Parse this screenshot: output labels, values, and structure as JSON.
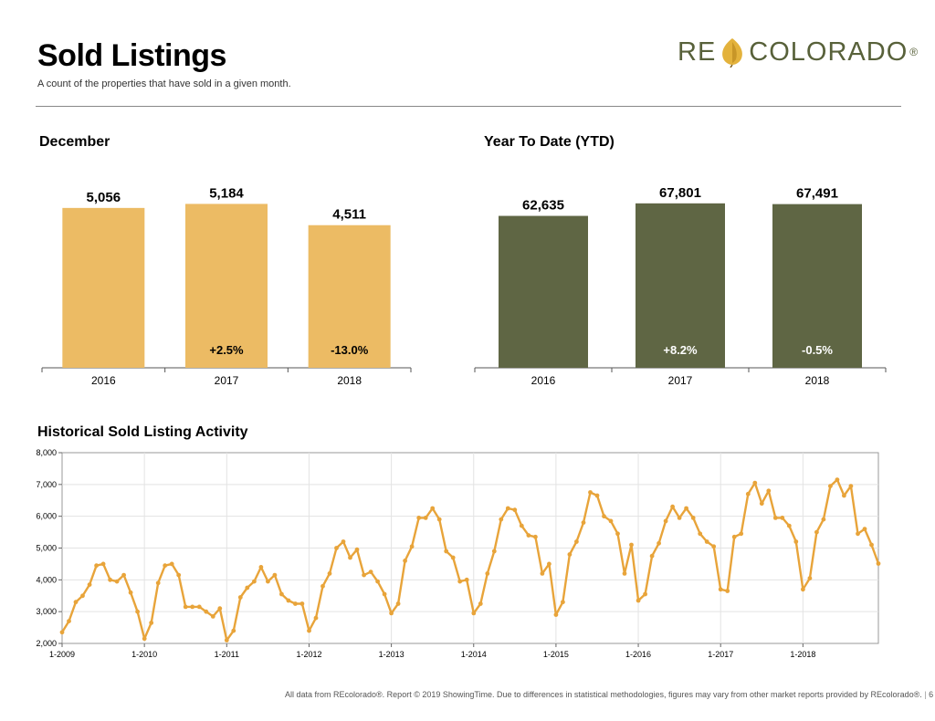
{
  "header": {
    "title": "Sold Listings",
    "subtitle": "A count of the properties that have sold in a given month."
  },
  "logo": {
    "left_text": "RE",
    "right_text": "COLORADO",
    "reg_mark": "®",
    "icon": "aspen-leaf-icon"
  },
  "colors": {
    "december_bar": "#ecbb64",
    "ytd_bar": "#5f6644",
    "line": "#e8a43a",
    "axis": "#555555"
  },
  "december": {
    "title": "December"
  },
  "ytd": {
    "title": "Year To Date (YTD)"
  },
  "historical": {
    "title": "Historical Sold Listing Activity"
  },
  "chart_data": [
    {
      "type": "bar",
      "title": "December",
      "categories": [
        "2016",
        "2017",
        "2018"
      ],
      "values": [
        5056,
        5184,
        4511
      ],
      "value_labels": [
        "5,056",
        "5,184",
        "4,511"
      ],
      "change_labels": [
        "",
        "+2.5%",
        "-13.0%"
      ],
      "ylim": [
        0,
        5600
      ]
    },
    {
      "type": "bar",
      "title": "Year To Date (YTD)",
      "categories": [
        "2016",
        "2017",
        "2018"
      ],
      "values": [
        62635,
        67801,
        67491
      ],
      "value_labels": [
        "62,635",
        "67,801",
        "67,491"
      ],
      "change_labels": [
        "",
        "+8.2%",
        "-0.5%"
      ],
      "ylim": [
        0,
        73000
      ]
    },
    {
      "type": "line",
      "title": "Historical Sold Listing Activity",
      "ylim": [
        2000,
        8000
      ],
      "yticks": [
        "2,000",
        "3,000",
        "4,000",
        "5,000",
        "6,000",
        "7,000",
        "8,000"
      ],
      "xticks": [
        "1-2009",
        "1-2010",
        "1-2011",
        "1-2012",
        "1-2013",
        "1-2014",
        "1-2015",
        "1-2016",
        "1-2017",
        "1-2018"
      ],
      "start": "1-2009",
      "values": [
        2350,
        2700,
        3300,
        3500,
        3850,
        4450,
        4500,
        4000,
        3950,
        4150,
        3600,
        3000,
        2150,
        2650,
        3900,
        4450,
        4500,
        4150,
        3150,
        3150,
        3150,
        3000,
        2850,
        3100,
        2100,
        2400,
        3450,
        3750,
        3950,
        4400,
        3950,
        4150,
        3550,
        3350,
        3250,
        3250,
        2400,
        2800,
        3800,
        4200,
        5000,
        5200,
        4700,
        4950,
        4150,
        4250,
        3950,
        3550,
        2950,
        3250,
        4600,
        5050,
        5950,
        5950,
        6250,
        5900,
        4900,
        4700,
        3950,
        4000,
        2950,
        3250,
        4200,
        4900,
        5900,
        6250,
        6200,
        5700,
        5400,
        5350,
        4200,
        4500,
        2900,
        3300,
        4800,
        5200,
        5800,
        6750,
        6650,
        6000,
        5850,
        5450,
        4200,
        5100,
        3350,
        3550,
        4750,
        5150,
        5850,
        6300,
        5950,
        6250,
        5950,
        5450,
        5200,
        5050,
        3700,
        3650,
        5350,
        5450,
        6700,
        7050,
        6400,
        6800,
        5950,
        5950,
        5700,
        5200,
        3700,
        4050,
        5500,
        5900,
        6950,
        7150,
        6650,
        6950,
        5450,
        5600,
        5100,
        4511
      ]
    }
  ],
  "footer": {
    "text": "All data from REcolorado®. Report © 2019 ShowingTime. Due to differences in statistical methodologies, figures may vary from other market reports provided by REcolorado®.",
    "page": "6"
  }
}
